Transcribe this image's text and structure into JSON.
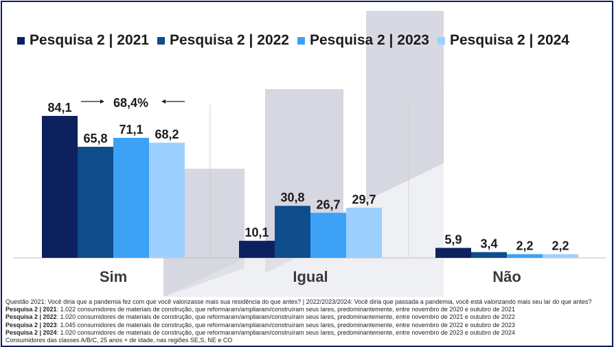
{
  "chart_data": {
    "type": "bar",
    "categories": [
      "Sim",
      "Igual",
      "Não"
    ],
    "series": [
      {
        "name": "Pesquisa 2 | 2021",
        "values": [
          84.1,
          10.1,
          5.9
        ],
        "labels": [
          "84,1",
          "10,1",
          "5,9"
        ],
        "color": "#0d215f"
      },
      {
        "name": "Pesquisa 2 | 2022",
        "values": [
          65.8,
          30.8,
          3.4
        ],
        "labels": [
          "65,8",
          "30,8",
          "3,4"
        ],
        "color": "#0f4d8c"
      },
      {
        "name": "Pesquisa 2 | 2023",
        "values": [
          71.1,
          26.7,
          2.2
        ],
        "labels": [
          "71,1",
          "26,7",
          "2,2"
        ],
        "color": "#3da2f5"
      },
      {
        "name": "Pesquisa 2 | 2024",
        "values": [
          68.2,
          29.7,
          2.2
        ],
        "labels": [
          "68,2",
          "29,7",
          "2,2"
        ],
        "color": "#9dd0ff"
      }
    ],
    "annotation": "68,4%",
    "ylim": [
      0,
      90
    ],
    "grid": false,
    "legend_position": "top"
  },
  "footnotes": {
    "question": "Questão 2021: Você diria que a pandemia fez com que você valorizasse mais sua residência do que antes? | 2022/2023/2024: Você diria que passada a pandemia, você está valorizando mais seu lar do que antes?",
    "rows": [
      {
        "label": "Pesquisa 2 | 2021",
        "text": ": 1.022 consumidores de materiais de construção, que reformaram/ampliaram/construíram seus lares, predominantemente, entre novembro de 2020 e outubro de 2021"
      },
      {
        "label": "Pesquisa 2 | 2022",
        "text": ": 1.020 consumidores de materiais de construção, que reformaram/ampliaram/construíram seus lares, predominantemente, entre novembro de 2021 e outubro de 2022"
      },
      {
        "label": "Pesquisa 2 | 2023",
        "text": ": 1.045 consumidores de materiais de construção, que reformaram/ampliaram/construíram seus lares, predominantemente, entre novembro de 2022 e outubro de 2023"
      },
      {
        "label": "Pesquisa 2 | 2024",
        "text": ": 1.020 consumidores de materiais de construção, que reformaram/ampliaram/construíram seus lares, predominantemente, entre novembro de 2023 e outubro de 2024"
      }
    ],
    "audience": "Consumidores das classes A/B/C, 25 anos + de idade, nas regiões SE,S, NE e CO"
  }
}
